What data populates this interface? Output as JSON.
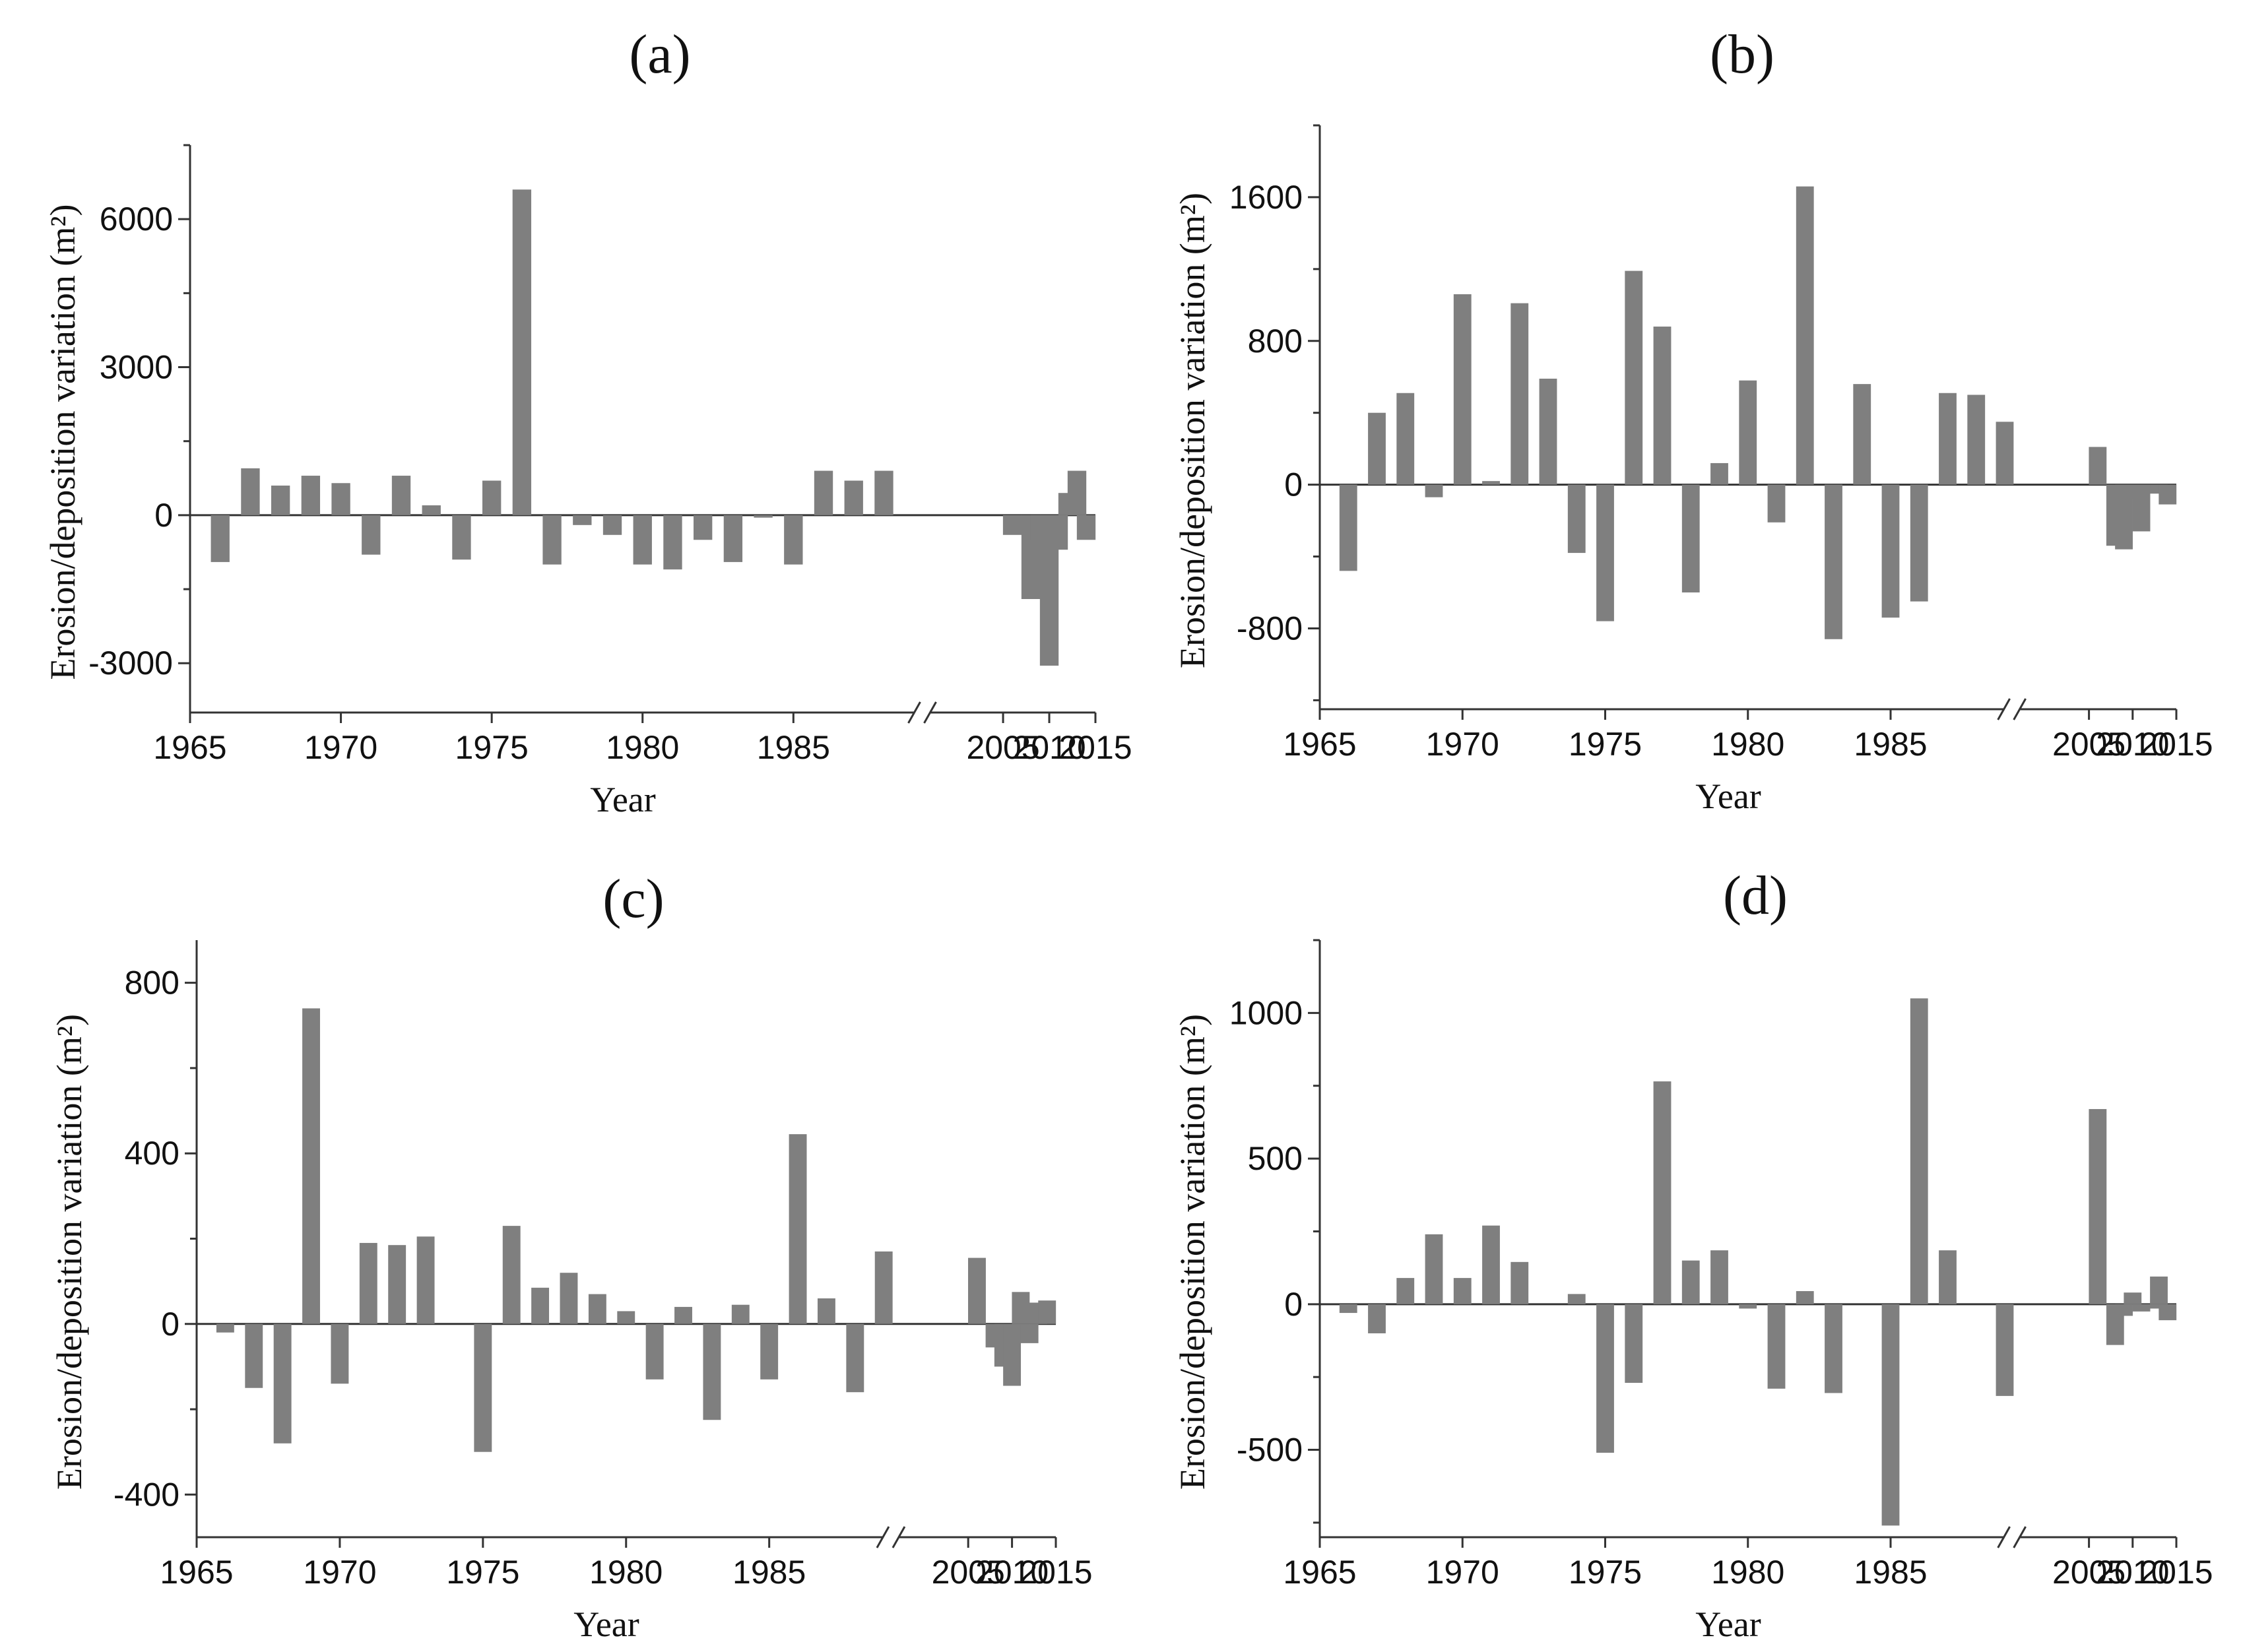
{
  "figure": {
    "xlabel": "Year",
    "ylabel": "Erosion/deposition variation (m²)",
    "bar_color": "#7f7f7f",
    "axis_color": "#333333"
  },
  "chart_data": [
    {
      "type": "bar",
      "panel": "(a)",
      "title": "(a)",
      "xlabel": "Year",
      "ylabel": "Erosion/deposition variation (m²)",
      "xlim": [
        1965,
        2015
      ],
      "axis_break": "between 1988 and 2005",
      "x_ticks": [
        "1965",
        "1970",
        "1975",
        "1980",
        "1985",
        "2005",
        "2010",
        "2015"
      ],
      "ylim": [
        -4000,
        7500
      ],
      "y_ticks": [
        -3000,
        0,
        3000,
        6000
      ],
      "y_tick_labels": [
        "-3000",
        "0",
        "3000",
        "6000"
      ],
      "years": [
        1966,
        1967,
        1968,
        1969,
        1970,
        1971,
        1972,
        1973,
        1974,
        1975,
        1976,
        1977,
        1978,
        1979,
        1980,
        1981,
        1982,
        1983,
        1984,
        1985,
        1986,
        1987,
        1988,
        2006,
        2008,
        2009,
        2010,
        2011,
        2012,
        2013,
        2014
      ],
      "values": [
        -950,
        950,
        600,
        800,
        650,
        -800,
        800,
        200,
        -900,
        700,
        6600,
        -1000,
        -200,
        -400,
        -1000,
        -1100,
        -500,
        -950,
        -50,
        -1000,
        900,
        700,
        900,
        -400,
        -1700,
        -500,
        -3050,
        -700,
        450,
        900,
        -500
      ]
    },
    {
      "type": "bar",
      "panel": "(b)",
      "title": "(b)",
      "xlabel": "Year",
      "ylabel": "Erosion/deposition variation (m²)",
      "xlim": [
        1965,
        2015
      ],
      "axis_break": "between 1988 and 2005",
      "x_ticks": [
        "1965",
        "1970",
        "1975",
        "1980",
        "1985",
        "2005",
        "2010",
        "2015"
      ],
      "ylim": [
        -1250,
        2000
      ],
      "y_ticks": [
        -800,
        0,
        800,
        1600
      ],
      "y_tick_labels": [
        "-800",
        "0",
        "800",
        "1600"
      ],
      "years": [
        1966,
        1967,
        1968,
        1969,
        1970,
        1971,
        1972,
        1973,
        1974,
        1975,
        1976,
        1977,
        1978,
        1979,
        1980,
        1981,
        1982,
        1983,
        1984,
        1985,
        1986,
        1987,
        1988,
        1989,
        2006,
        2008,
        2009,
        2010,
        2011,
        2012,
        2013,
        2014
      ],
      "values": [
        -480,
        400,
        510,
        -70,
        1060,
        20,
        1010,
        590,
        -380,
        -760,
        1190,
        880,
        -600,
        120,
        580,
        -210,
        1660,
        -860,
        560,
        -740,
        -650,
        510,
        500,
        350,
        210,
        -340,
        -360,
        -80,
        -260,
        -50,
        -20,
        -110
      ]
    },
    {
      "type": "bar",
      "panel": "(c)",
      "title": "(c)",
      "xlabel": "Year",
      "ylabel": "Erosion/deposition variation (m²)",
      "xlim": [
        1965,
        2015
      ],
      "axis_break": "between 1988 and 2005",
      "x_ticks": [
        "1965",
        "1970",
        "1975",
        "1980",
        "1985",
        "2005",
        "2010",
        "2015"
      ],
      "ylim": [
        -500,
        900
      ],
      "y_ticks": [
        -400,
        0,
        400,
        800
      ],
      "y_tick_labels": [
        "-400",
        "0",
        "400",
        "800"
      ],
      "years": [
        1966,
        1967,
        1968,
        1969,
        1970,
        1971,
        1972,
        1973,
        1975,
        1976,
        1977,
        1978,
        1979,
        1980,
        1981,
        1982,
        1983,
        1984,
        1985,
        1986,
        1987,
        1988,
        1989,
        2006,
        2008,
        2009,
        2010,
        2011,
        2012,
        2013,
        2014
      ],
      "values": [
        -20,
        -150,
        -280,
        740,
        -140,
        190,
        185,
        205,
        -300,
        230,
        85,
        120,
        70,
        30,
        -130,
        40,
        -225,
        45,
        -130,
        445,
        60,
        -160,
        170,
        155,
        -55,
        -100,
        -145,
        75,
        -45,
        50,
        55
      ]
    },
    {
      "type": "bar",
      "panel": "(d)",
      "title": "(d)",
      "xlabel": "Year",
      "ylabel": "Erosion/deposition variation (m²)",
      "xlim": [
        1965,
        2015
      ],
      "axis_break": "between 1988 and 2005",
      "x_ticks": [
        "1965",
        "1970",
        "1975",
        "1980",
        "1985",
        "2005",
        "2010",
        "2015"
      ],
      "ylim": [
        -800,
        1250
      ],
      "y_ticks": [
        -500,
        0,
        500,
        1000
      ],
      "y_tick_labels": [
        "-500",
        "0",
        "500",
        "1000"
      ],
      "years": [
        1966,
        1967,
        1968,
        1969,
        1970,
        1971,
        1972,
        1974,
        1975,
        1976,
        1977,
        1978,
        1979,
        1980,
        1981,
        1982,
        1983,
        1985,
        1986,
        1987,
        1989,
        2006,
        2008,
        2009,
        2010,
        2011,
        2012,
        2013,
        2014
      ],
      "values": [
        -30,
        -100,
        90,
        240,
        90,
        270,
        145,
        35,
        -510,
        -270,
        765,
        150,
        185,
        -15,
        -290,
        45,
        -305,
        -760,
        1050,
        185,
        -315,
        670,
        -140,
        -40,
        40,
        -25,
        -15,
        95,
        -55
      ]
    }
  ]
}
